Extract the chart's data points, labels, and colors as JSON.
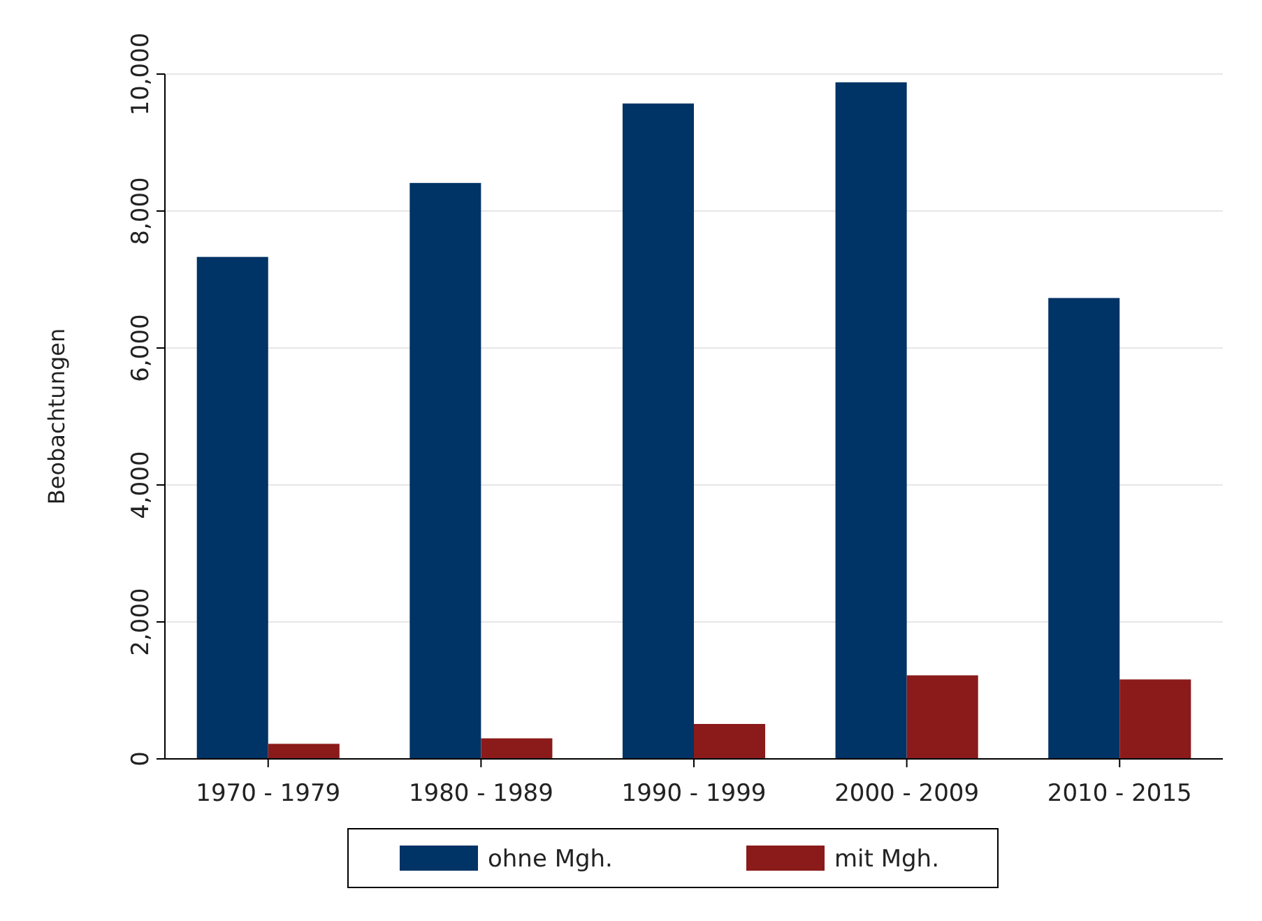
{
  "chart_data": {
    "type": "bar",
    "ylabel": "Beobachtungen",
    "categories": [
      "1970 - 1979",
      "1980 - 1989",
      "1990 - 1999",
      "2000 - 2009",
      "2010 - 2015"
    ],
    "series": [
      {
        "name": "ohne Mgh.",
        "color": "#003366",
        "values": [
          7330,
          8410,
          9570,
          9880,
          6730
        ]
      },
      {
        "name": "mit Mgh.",
        "color": "#8b1a1a",
        "values": [
          220,
          300,
          510,
          1220,
          1160
        ]
      }
    ],
    "ylim": [
      0,
      10000
    ],
    "yticks": [
      {
        "value": 0,
        "label": "0"
      },
      {
        "value": 2000,
        "label": "2,000"
      },
      {
        "value": 4000,
        "label": "4,000"
      },
      {
        "value": 6000,
        "label": "6,000"
      },
      {
        "value": 8000,
        "label": "8,000"
      },
      {
        "value": 10000,
        "label": "10,000"
      }
    ],
    "grid": "y",
    "legend": "bottom"
  }
}
